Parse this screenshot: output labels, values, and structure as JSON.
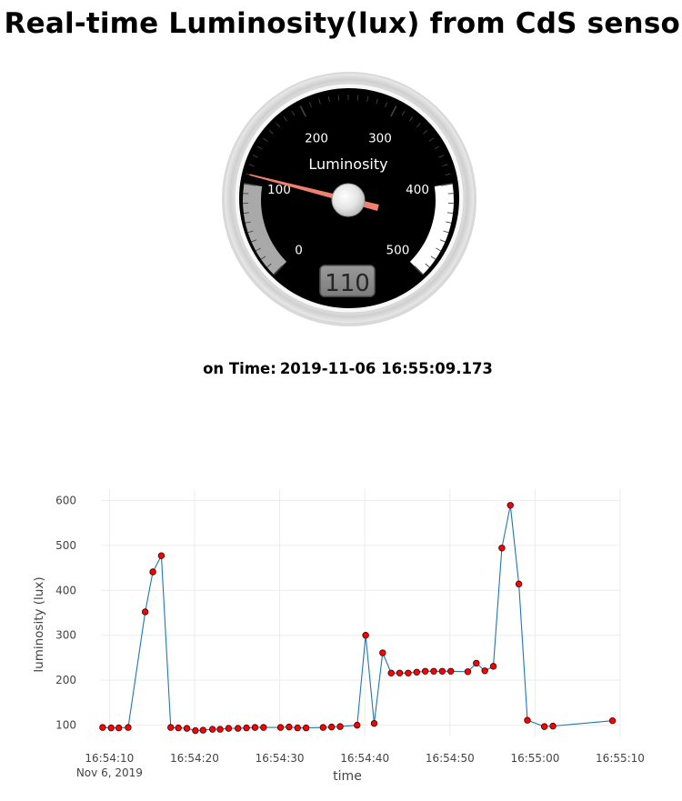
{
  "page": {
    "title": "Real-time Luminosity(lux) from CdS sensor",
    "time_label": "on Time:",
    "time_value": "2019-11-06 16:55:09.173"
  },
  "gauge": {
    "label": "Luminosity",
    "value": 110,
    "display": "110",
    "min": 0,
    "max": 500,
    "major_ticks": [
      0,
      100,
      200,
      300,
      400,
      500
    ],
    "tick_labels": [
      "0",
      "100",
      "200",
      "300",
      "400",
      "500"
    ],
    "bands": [
      {
        "from": 0,
        "to": 100,
        "color": "#a9a9a9"
      },
      {
        "from": 400,
        "to": 500,
        "color": "#ffffff"
      }
    ],
    "needle_color": "#f08070",
    "face_color": "#000000"
  },
  "chart_data": {
    "type": "line",
    "xlabel": "time",
    "ylabel": "luminosity (lux)",
    "x_tick_labels": [
      "16:54:10",
      "16:54:20",
      "16:54:30",
      "16:54:40",
      "16:54:50",
      "16:55:00",
      "16:55:10"
    ],
    "x_tick_date_label": "Nov 6, 2019",
    "x_tick_seconds": [
      10,
      20,
      30,
      40,
      50,
      60,
      70
    ],
    "xlim_seconds": [
      9.0,
      70.0
    ],
    "x_unit_note": "seconds after 16:54:00 on Nov 6, 2019",
    "yticks": [
      100,
      200,
      300,
      400,
      500,
      600
    ],
    "ylim": [
      75,
      625
    ],
    "grid": true,
    "line_color": "#1f77b4",
    "marker_color": "#ff0000",
    "series": [
      {
        "x": [
          9.2,
          10.2,
          11.1,
          12.2,
          13.1,
          14.2,
          15.1,
          16.1,
          17.2,
          18.1,
          19.1,
          20.1,
          21.0,
          22.1,
          23.0,
          24.0,
          25.1,
          26.1,
          27.1,
          28.1,
          29.1,
          30.1,
          31.1,
          32.1,
          33.1,
          34.1,
          35.1,
          36.1,
          37.1,
          38.1,
          39.1,
          40.1,
          41.1,
          42.1,
          43.1,
          44.1,
          45.1,
          46.1,
          47.1,
          48.1,
          49.1,
          50.1,
          51.1,
          52.1,
          53.1,
          54.1,
          55.1,
          56.1,
          57.1,
          58.1,
          59.1,
          60.1,
          61.1,
          62.1,
          63.1,
          64.1,
          65.1,
          66.1,
          67.1,
          68.1,
          69.1
        ],
        "y": [
          95,
          94,
          94,
          95,
          96,
          352,
          441,
          477,
          95,
          94,
          93,
          88,
          89,
          91,
          91,
          93,
          93,
          94,
          95,
          95,
          95,
          95,
          96,
          94,
          94,
          95,
          95,
          96,
          97,
          97,
          100,
          300,
          104,
          261,
          216,
          216,
          216,
          218,
          220,
          220,
          220,
          220,
          219,
          219,
          238,
          221,
          231,
          494,
          589,
          414,
          111,
          111,
          97,
          98,
          99,
          100,
          101,
          102,
          104,
          106,
          110
        ],
        "mask": [
          1,
          1,
          1,
          1,
          0,
          1,
          1,
          1,
          1,
          1,
          1,
          1,
          1,
          1,
          1,
          1,
          1,
          1,
          1,
          1,
          0,
          1,
          1,
          1,
          1,
          0,
          1,
          1,
          1,
          0,
          1,
          1,
          1,
          1,
          1,
          1,
          1,
          1,
          1,
          1,
          1,
          1,
          0,
          1,
          1,
          1,
          1,
          1,
          1,
          1,
          1,
          0,
          1,
          1,
          0,
          0,
          0,
          0,
          0,
          0,
          1
        ]
      }
    ]
  }
}
